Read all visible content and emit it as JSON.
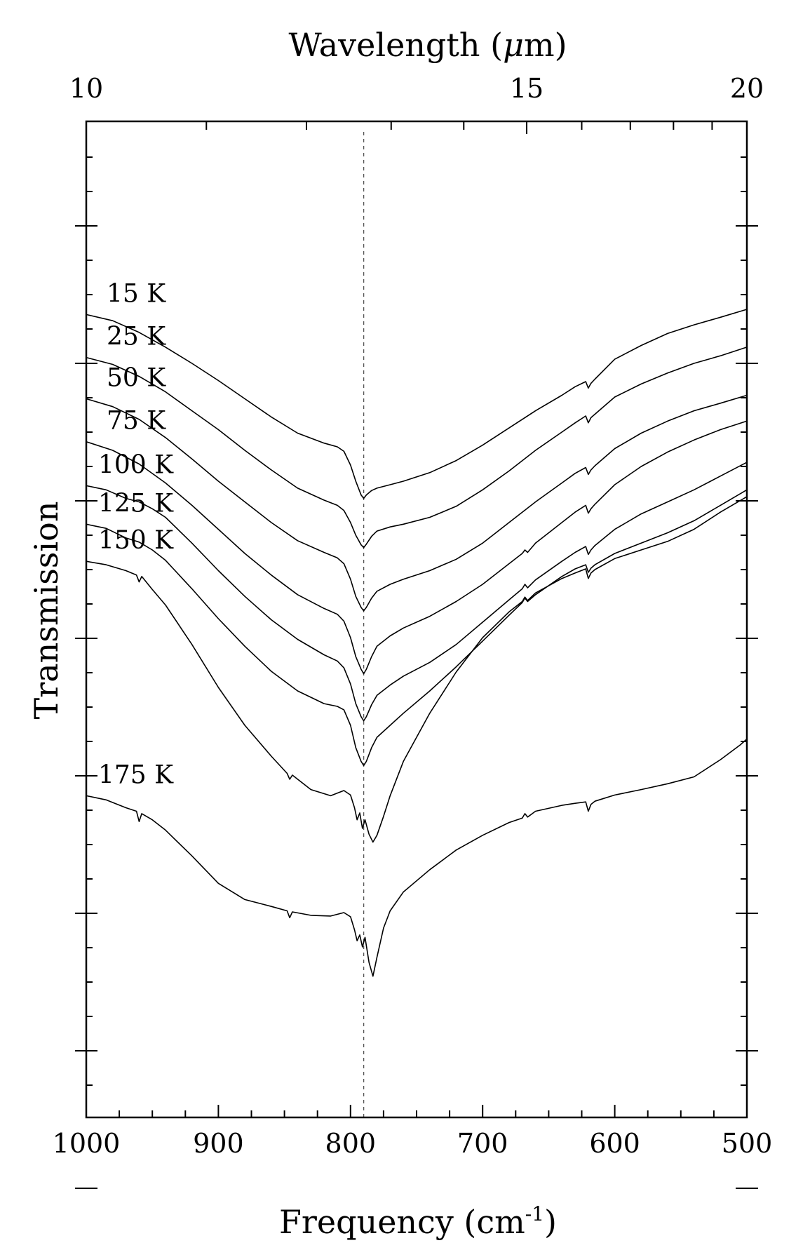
{
  "chart_data": {
    "type": "line",
    "xlabel": "Frequency (cm",
    "xlabel_sup": "-1",
    "xlabel_close": ")",
    "x2label": "Wavelength (",
    "x2label_mu": "μ",
    "x2label_close": "m)",
    "ylabel": "Transmission",
    "xlim": [
      1000,
      500
    ],
    "x_ticks": [
      "1000",
      "900",
      "800",
      "700",
      "600",
      "500"
    ],
    "x2_ticks": [
      "10",
      "15",
      "20"
    ],
    "x2_tick_values": [
      10,
      15,
      20
    ],
    "x2_minor_values": [
      11,
      12,
      13,
      14,
      16,
      17,
      18,
      19
    ],
    "y_axis_numbers_shown": false,
    "reference_line_frequency": 790,
    "series": [
      {
        "name": "15 K",
        "x": [
          1000,
          980,
          960,
          940,
          920,
          900,
          880,
          860,
          840,
          820,
          810,
          805,
          800,
          796,
          792,
          790,
          788,
          784,
          780,
          770,
          760,
          740,
          720,
          700,
          680,
          660,
          640,
          630,
          622,
          620,
          618,
          615,
          600,
          580,
          560,
          540,
          520,
          500
        ],
        "y": [
          8.4,
          8.22,
          7.88,
          7.45,
          6.98,
          6.48,
          5.95,
          5.42,
          4.95,
          4.66,
          4.55,
          4.42,
          4.02,
          3.55,
          3.15,
          3.05,
          3.15,
          3.28,
          3.35,
          3.45,
          3.55,
          3.8,
          4.15,
          4.6,
          5.1,
          5.6,
          6.05,
          6.3,
          6.45,
          6.26,
          6.4,
          6.52,
          7.1,
          7.5,
          7.85,
          8.1,
          8.32,
          8.55
        ]
      },
      {
        "name": "25 K",
        "x": [
          1000,
          980,
          960,
          940,
          920,
          900,
          880,
          860,
          840,
          820,
          810,
          805,
          800,
          796,
          792,
          790,
          788,
          784,
          780,
          770,
          760,
          740,
          720,
          700,
          680,
          660,
          640,
          630,
          622,
          620,
          618,
          615,
          600,
          580,
          560,
          540,
          520,
          500
        ],
        "y": [
          7.15,
          6.95,
          6.6,
          6.15,
          5.6,
          5.05,
          4.45,
          3.88,
          3.35,
          3.0,
          2.85,
          2.7,
          2.35,
          1.98,
          1.7,
          1.62,
          1.72,
          1.95,
          2.1,
          2.22,
          2.3,
          2.5,
          2.82,
          3.3,
          3.85,
          4.45,
          4.98,
          5.25,
          5.45,
          5.25,
          5.4,
          5.5,
          6.0,
          6.38,
          6.7,
          6.98,
          7.2,
          7.45
        ]
      },
      {
        "name": "50 K",
        "x": [
          1000,
          980,
          960,
          940,
          920,
          900,
          880,
          860,
          840,
          820,
          810,
          805,
          800,
          796,
          792,
          790,
          788,
          784,
          780,
          770,
          760,
          740,
          720,
          700,
          680,
          660,
          640,
          630,
          622,
          620,
          618,
          615,
          600,
          580,
          560,
          540,
          520,
          500
        ],
        "y": [
          5.95,
          5.72,
          5.35,
          4.82,
          4.2,
          3.55,
          2.95,
          2.35,
          1.82,
          1.48,
          1.32,
          1.15,
          0.7,
          0.2,
          -0.12,
          -0.22,
          -0.12,
          0.15,
          0.35,
          0.55,
          0.7,
          0.95,
          1.28,
          1.75,
          2.35,
          2.95,
          3.5,
          3.78,
          3.95,
          3.75,
          3.88,
          4.0,
          4.5,
          4.95,
          5.3,
          5.6,
          5.82,
          6.05
        ]
      },
      {
        "name": "75 K",
        "x": [
          1000,
          980,
          960,
          940,
          920,
          900,
          880,
          860,
          840,
          820,
          810,
          805,
          800,
          796,
          792,
          790,
          788,
          784,
          780,
          770,
          760,
          740,
          720,
          700,
          680,
          670,
          668,
          666,
          660,
          640,
          630,
          622,
          620,
          618,
          615,
          600,
          580,
          560,
          540,
          520,
          500
        ],
        "y": [
          4.7,
          4.45,
          4.05,
          3.5,
          2.85,
          2.15,
          1.45,
          0.82,
          0.25,
          -0.15,
          -0.32,
          -0.52,
          -1.0,
          -1.55,
          -1.92,
          -2.05,
          -1.92,
          -1.55,
          -1.25,
          -0.95,
          -0.72,
          -0.38,
          0.05,
          0.55,
          1.15,
          1.45,
          1.55,
          1.48,
          1.75,
          2.35,
          2.65,
          2.85,
          2.62,
          2.75,
          2.88,
          3.45,
          3.98,
          4.4,
          4.75,
          5.05,
          5.3
        ]
      },
      {
        "name": "100 K",
        "x": [
          1000,
          985,
          970,
          960,
          950,
          940,
          920,
          900,
          880,
          860,
          840,
          820,
          810,
          805,
          800,
          796,
          792,
          790,
          788,
          784,
          780,
          770,
          760,
          740,
          720,
          700,
          680,
          670,
          668,
          666,
          660,
          640,
          630,
          622,
          620,
          618,
          615,
          600,
          580,
          560,
          540,
          520,
          500
        ],
        "y": [
          3.42,
          3.3,
          3.05,
          2.95,
          2.75,
          2.5,
          1.75,
          0.95,
          0.2,
          -0.48,
          -1.05,
          -1.5,
          -1.68,
          -1.88,
          -2.35,
          -2.92,
          -3.3,
          -3.42,
          -3.3,
          -2.95,
          -2.68,
          -2.38,
          -2.12,
          -1.72,
          -1.2,
          -0.55,
          0.1,
          0.42,
          0.55,
          0.45,
          0.68,
          1.22,
          1.48,
          1.65,
          1.42,
          1.55,
          1.68,
          2.15,
          2.6,
          2.95,
          3.3,
          3.7,
          4.1
        ]
      },
      {
        "name": "125 K",
        "x": [
          1000,
          985,
          970,
          960,
          950,
          940,
          920,
          900,
          880,
          860,
          840,
          820,
          810,
          805,
          800,
          796,
          792,
          790,
          788,
          784,
          780,
          770,
          760,
          740,
          720,
          700,
          680,
          670,
          668,
          666,
          660,
          640,
          630,
          622,
          620,
          618,
          615,
          600,
          580,
          560,
          540,
          520,
          500
        ],
        "y": [
          2.3,
          2.18,
          1.9,
          1.78,
          1.55,
          1.25,
          0.42,
          -0.45,
          -1.25,
          -1.98,
          -2.55,
          -2.92,
          -3.0,
          -3.1,
          -3.55,
          -4.2,
          -4.6,
          -4.72,
          -4.6,
          -4.2,
          -3.9,
          -3.55,
          -3.2,
          -2.55,
          -1.85,
          -1.1,
          -0.35,
          0.02,
          0.15,
          0.05,
          0.25,
          0.78,
          1.0,
          1.12,
          0.9,
          1.02,
          1.12,
          1.45,
          1.75,
          2.05,
          2.4,
          2.85,
          3.3
        ]
      },
      {
        "name": "150 K",
        "x": [
          1000,
          985,
          970,
          962,
          960,
          958,
          950,
          940,
          920,
          900,
          880,
          860,
          848,
          846,
          844,
          830,
          815,
          805,
          800,
          797,
          795,
          793,
          791,
          789,
          786,
          783,
          780,
          775,
          770,
          760,
          740,
          720,
          700,
          680,
          670,
          668,
          666,
          660,
          640,
          630,
          622,
          620,
          618,
          615,
          600,
          580,
          560,
          540,
          520,
          500
        ],
        "y": [
          1.22,
          1.12,
          0.95,
          0.82,
          0.62,
          0.78,
          0.4,
          -0.05,
          -1.2,
          -2.45,
          -3.55,
          -4.45,
          -4.95,
          -5.12,
          -5.0,
          -5.42,
          -5.6,
          -5.45,
          -5.58,
          -5.95,
          -6.3,
          -6.1,
          -6.55,
          -6.3,
          -6.72,
          -6.95,
          -6.75,
          -6.2,
          -5.6,
          -4.6,
          -3.2,
          -2.0,
          -1.0,
          -0.25,
          0.05,
          0.18,
          0.08,
          0.3,
          0.72,
          0.88,
          1.0,
          0.72,
          0.88,
          0.98,
          1.3,
          1.55,
          1.8,
          2.15,
          2.65,
          3.1
        ]
      },
      {
        "name": "175 K",
        "x": [
          1000,
          985,
          970,
          962,
          960,
          958,
          950,
          940,
          920,
          900,
          880,
          860,
          848,
          846,
          844,
          830,
          815,
          805,
          800,
          797,
          795,
          793,
          791,
          789,
          786,
          783,
          780,
          775,
          770,
          760,
          740,
          720,
          700,
          680,
          670,
          668,
          666,
          660,
          640,
          630,
          622,
          620,
          618,
          615,
          600,
          580,
          560,
          540,
          520,
          505,
          500
        ],
        "y": [
          -5.6,
          -5.72,
          -5.95,
          -6.05,
          -6.35,
          -6.12,
          -6.3,
          -6.6,
          -7.35,
          -8.15,
          -8.62,
          -8.82,
          -8.95,
          -9.15,
          -8.98,
          -9.08,
          -9.1,
          -9.0,
          -9.12,
          -9.5,
          -9.82,
          -9.65,
          -10.0,
          -9.72,
          -10.45,
          -10.85,
          -10.3,
          -9.45,
          -8.95,
          -8.4,
          -7.75,
          -7.18,
          -6.75,
          -6.38,
          -6.25,
          -6.12,
          -6.22,
          -6.05,
          -5.88,
          -5.82,
          -5.78,
          -6.05,
          -5.85,
          -5.76,
          -5.58,
          -5.42,
          -5.25,
          -5.05,
          -4.55,
          -4.12,
          -3.95
        ]
      }
    ]
  }
}
